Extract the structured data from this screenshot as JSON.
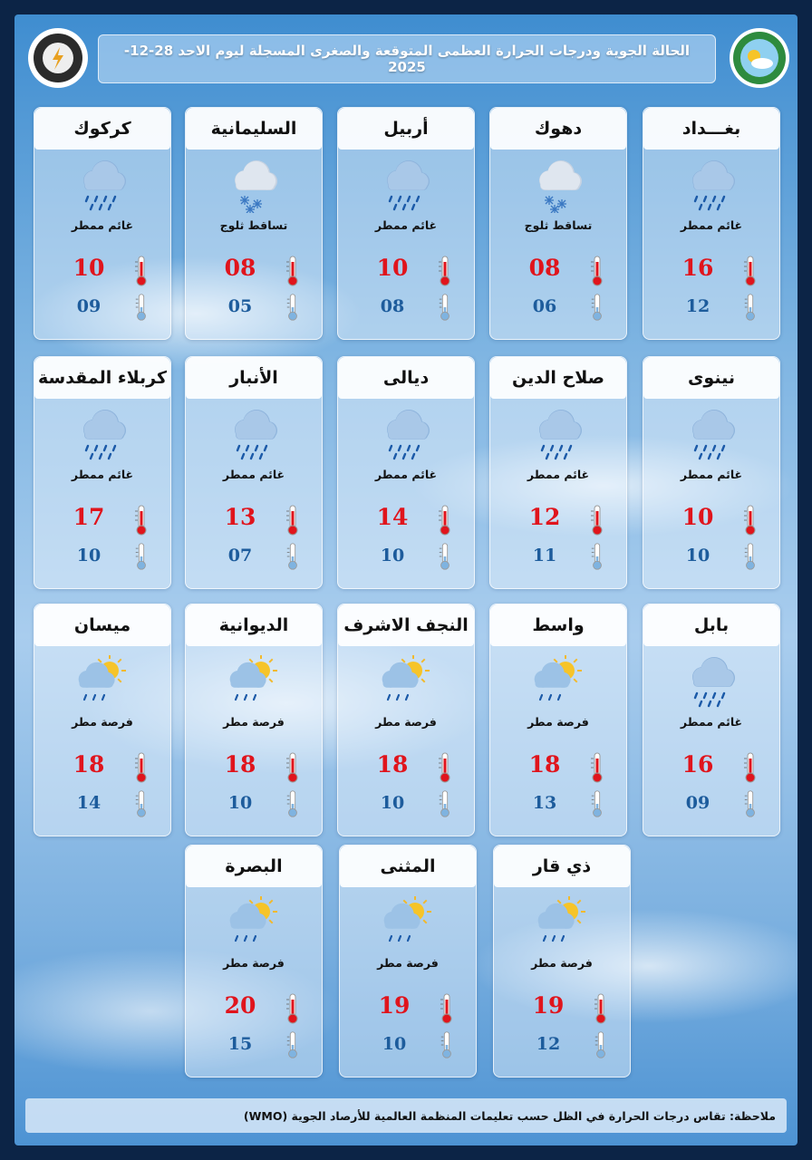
{
  "header": {
    "title": "الحالة الجوية ودرجات الحرارة العظمى المتوقعة والصغرى المسجلة ليوم الاحد 28-12-2025"
  },
  "rows": [
    [
      {
        "name": "بغـــداد",
        "condition": "غائم ممطر",
        "max": "16",
        "min": "12"
      },
      {
        "name": "دهوك",
        "condition": "تساقط ثلوج",
        "max": "08",
        "min": "06"
      },
      {
        "name": "أربيل",
        "condition": "غائم ممطر",
        "max": "10",
        "min": "08"
      },
      {
        "name": "السليمانية",
        "condition": "تساقط ثلوج",
        "max": "08",
        "min": "05"
      },
      {
        "name": "كركوك",
        "condition": "غائم ممطر",
        "max": "10",
        "min": "09"
      }
    ],
    [
      {
        "name": "نينوى",
        "condition": "غائم ممطر",
        "max": "10",
        "min": "10"
      },
      {
        "name": "صلاح الدين",
        "condition": "غائم ممطر",
        "max": "12",
        "min": "11"
      },
      {
        "name": "ديالى",
        "condition": "غائم ممطر",
        "max": "14",
        "min": "10"
      },
      {
        "name": "الأنبار",
        "condition": "غائم ممطر",
        "max": "13",
        "min": "07"
      },
      {
        "name": "كربلاء المقدسة",
        "condition": "غائم ممطر",
        "max": "17",
        "min": "10"
      }
    ],
    [
      {
        "name": "بابل",
        "condition": "غائم ممطر",
        "max": "16",
        "min": "09"
      },
      {
        "name": "واسط",
        "condition": "فرصة مطر",
        "max": "18",
        "min": "13"
      },
      {
        "name": "النجف الاشرف",
        "condition": "فرصة مطر",
        "max": "18",
        "min": "10"
      },
      {
        "name": "الديوانية",
        "condition": "فرصة مطر",
        "max": "18",
        "min": "10"
      },
      {
        "name": "ميسان",
        "condition": "فرصة مطر",
        "max": "18",
        "min": "14"
      }
    ],
    [
      {
        "name": "ذي قار",
        "condition": "فرصة مطر",
        "max": "19",
        "min": "12"
      },
      {
        "name": "المثنى",
        "condition": "فرصة مطر",
        "max": "19",
        "min": "10"
      },
      {
        "name": "البصرة",
        "condition": "فرصة مطر",
        "max": "20",
        "min": "15"
      }
    ]
  ],
  "note": "ملاحظة: تقاس درجات الحرارة في الظل حسب تعليمات المنظمة العالمية للأرصاد الجوية (WMO)"
}
